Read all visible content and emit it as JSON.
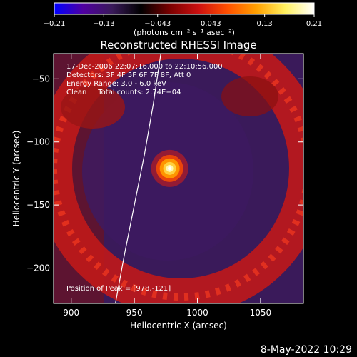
{
  "chart_data": {
    "type": "heatmap",
    "title": "Reconstructed RHESSI Image",
    "xlabel": "Heliocentric X (arcsec)",
    "ylabel": "Heliocentric Y (arcsec)",
    "xlim": [
      886,
      1084
    ],
    "ylim": [
      -228,
      -30
    ],
    "x_ticks": [
      900,
      950,
      1000,
      1050
    ],
    "y_ticks": [
      -50,
      -100,
      -150,
      -200
    ],
    "x_tick_labels": [
      "900",
      "950",
      "1000",
      "1050"
    ],
    "y_tick_labels": [
      "−50",
      "−100",
      "−150",
      "−200"
    ],
    "colorbar": {
      "range": [
        -0.21,
        0.21
      ],
      "ticks": [
        -0.21,
        -0.13,
        -0.043,
        0.043,
        0.13,
        0.21
      ],
      "tick_labels": [
        "−0.21",
        "−0.13",
        "−0.043",
        "0.043",
        "0.13",
        "0.21"
      ],
      "label": "(photons cm⁻² s⁻¹ asec⁻²)",
      "colors": [
        "#0000ff",
        "#5000a0",
        "#3a1a5a",
        "#000000",
        "#7a0000",
        "#cc1010",
        "#ff5000",
        "#ffa000",
        "#fff060",
        "#ffffff"
      ]
    },
    "annotations": [
      "17-Dec-2006 22:07:16.000 to 22:10:56.000",
      "Detectors: 3F 4F 5F 6F 7F 8F, Att 0",
      "Energy Range: 3.0 - 6.0 keV",
      "Clean     Total counts: 2.74E+04"
    ],
    "peak_label": "Position of Peak = [978,-121]",
    "peak": {
      "x": 978,
      "y": -121
    },
    "peak_color": "#ffffff",
    "limb_line": [
      [
        971,
        -30
      ],
      [
        965,
        -70
      ],
      [
        958,
        -110
      ],
      [
        950,
        -150
      ],
      [
        942,
        -190
      ],
      [
        935,
        -228
      ]
    ],
    "limb_color": "#ffffff",
    "ring_color": "#cc2020",
    "background_color": "#3a1a5a"
  },
  "footer_date": "8-May-2022 10:29"
}
